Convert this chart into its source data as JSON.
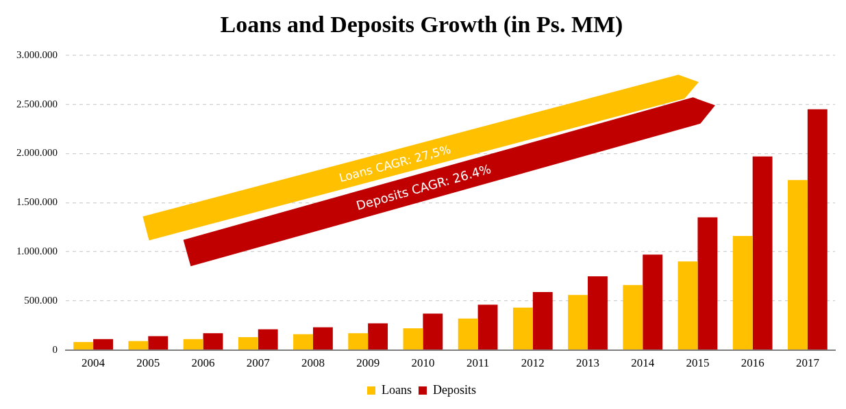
{
  "chart_data": {
    "type": "bar",
    "title": "Loans and Deposits Growth (in Ps. MM)",
    "categories": [
      "2004",
      "2005",
      "2006",
      "2007",
      "2008",
      "2009",
      "2010",
      "2011",
      "2012",
      "2013",
      "2014",
      "2015",
      "2016",
      "2017"
    ],
    "series": [
      {
        "name": "Loans",
        "color": "#ffc000",
        "values": [
          80000,
          90000,
          110000,
          130000,
          160000,
          170000,
          220000,
          320000,
          430000,
          560000,
          660000,
          900000,
          1160000,
          1730000
        ]
      },
      {
        "name": "Deposits",
        "color": "#c00000",
        "values": [
          110000,
          140000,
          170000,
          210000,
          230000,
          270000,
          370000,
          460000,
          590000,
          750000,
          970000,
          1350000,
          1970000,
          2450000
        ]
      }
    ],
    "ylim": [
      0,
      3000000
    ],
    "yticks": [
      0,
      {
        "value": 500000,
        "label": "500.000"
      },
      {
        "value": 1000000,
        "label": "1.000.000"
      },
      {
        "value": 1500000,
        "label": "1.500.000"
      },
      {
        "value": 2000000,
        "label": "2.000.000"
      },
      {
        "value": 2500000,
        "label": "2.500.000"
      },
      {
        "value": 3000000,
        "label": "3.000.000"
      }
    ],
    "grid": "y",
    "legend": "bottom",
    "annotations": [
      "Loans CAGR: 27,5%",
      "Deposits CAGR: 26.4%"
    ]
  }
}
